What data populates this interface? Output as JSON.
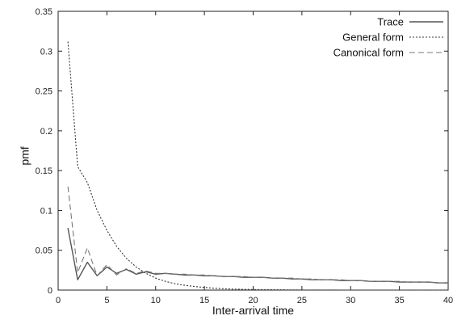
{
  "chart_data": {
    "type": "line",
    "title": "",
    "xlabel": "Inter-arrival time",
    "ylabel": "pmf",
    "xlim": [
      0,
      40
    ],
    "ylim": [
      0,
      0.35
    ],
    "xticks": [
      0,
      5,
      10,
      15,
      20,
      25,
      30,
      35,
      40
    ],
    "yticks": [
      0,
      0.05,
      0.1,
      0.15,
      0.2,
      0.25,
      0.3,
      0.35
    ],
    "grid": false,
    "legend_position": "top-right",
    "series": [
      {
        "name": "Trace",
        "style": "solid",
        "color": "#555555",
        "x": [
          1,
          2,
          3,
          4,
          5,
          6,
          7,
          8,
          9,
          10,
          11,
          12,
          13,
          14,
          15,
          16,
          17,
          18,
          19,
          20,
          21,
          22,
          23,
          24,
          25,
          26,
          27,
          28,
          29,
          30,
          31,
          32,
          33,
          34,
          35,
          36,
          37,
          38,
          39,
          40
        ],
        "values": [
          0.078,
          0.013,
          0.035,
          0.018,
          0.029,
          0.021,
          0.026,
          0.02,
          0.023,
          0.02,
          0.021,
          0.02,
          0.019,
          0.019,
          0.018,
          0.018,
          0.017,
          0.017,
          0.016,
          0.016,
          0.016,
          0.015,
          0.015,
          0.014,
          0.014,
          0.013,
          0.013,
          0.013,
          0.012,
          0.012,
          0.012,
          0.011,
          0.011,
          0.011,
          0.01,
          0.01,
          0.01,
          0.01,
          0.009,
          0.009
        ]
      },
      {
        "name": "General form",
        "style": "dotted",
        "color": "#333333",
        "x": [
          1,
          2,
          3,
          4,
          5,
          6,
          7,
          8,
          9,
          10,
          11,
          12,
          13,
          14,
          15,
          16,
          17,
          18,
          19,
          20,
          21,
          22,
          23,
          24,
          25,
          26,
          27,
          28,
          29,
          30,
          31,
          32,
          33,
          34,
          35,
          36,
          37,
          38,
          39,
          40
        ],
        "values": [
          0.312,
          0.155,
          0.135,
          0.1,
          0.075,
          0.055,
          0.04,
          0.029,
          0.021,
          0.015,
          0.011,
          0.008,
          0.006,
          0.0045,
          0.0033,
          0.0024,
          0.0017,
          0.0012,
          0.0009,
          0.0007,
          0.0005,
          0.0004,
          0.0003,
          0.0002,
          0.0001,
          0.0001,
          0.0001,
          0.0001,
          0,
          0,
          0,
          0,
          0,
          0,
          0,
          0,
          0,
          0,
          0,
          0
        ]
      },
      {
        "name": "Canonical form",
        "style": "dashed",
        "color": "#777777",
        "x": [
          1,
          2,
          3,
          4,
          5,
          6,
          7,
          8,
          9,
          10,
          11,
          12,
          13,
          14,
          15,
          16,
          17,
          18,
          19,
          20,
          21,
          22,
          23,
          24,
          25,
          26,
          27,
          28,
          29,
          30,
          31,
          32,
          33,
          34,
          35,
          36,
          37,
          38,
          39,
          40
        ],
        "values": [
          0.13,
          0.022,
          0.053,
          0.018,
          0.032,
          0.019,
          0.027,
          0.021,
          0.024,
          0.021,
          0.021,
          0.02,
          0.02,
          0.019,
          0.019,
          0.018,
          0.017,
          0.017,
          0.017,
          0.016,
          0.016,
          0.015,
          0.015,
          0.015,
          0.014,
          0.014,
          0.013,
          0.013,
          0.013,
          0.012,
          0.012,
          0.011,
          0.011,
          0.011,
          0.011,
          0.01,
          0.01,
          0.01,
          0.009,
          0.009
        ]
      }
    ]
  }
}
